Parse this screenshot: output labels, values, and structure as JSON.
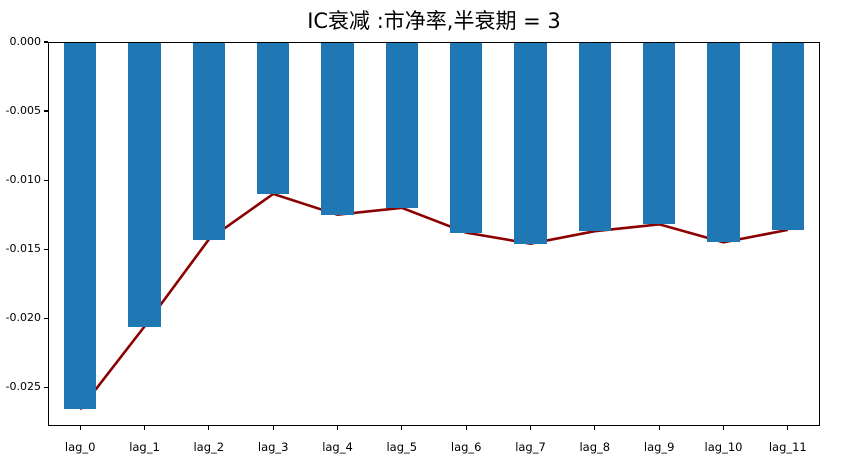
{
  "chart_data": {
    "type": "bar",
    "title": "IC衰减 :市净率,半衰期 = 3",
    "categories": [
      "lag_0",
      "lag_1",
      "lag_2",
      "lag_3",
      "lag_4",
      "lag_5",
      "lag_6",
      "lag_7",
      "lag_8",
      "lag_9",
      "lag_10",
      "lag_11"
    ],
    "series": [
      {
        "name": "ic-bars",
        "type": "bar",
        "color": "#1f77b4",
        "values": [
          -0.0266,
          -0.0206,
          -0.0143,
          -0.011,
          -0.0125,
          -0.012,
          -0.0138,
          -0.0146,
          -0.0137,
          -0.0132,
          -0.0145,
          -0.0136
        ]
      },
      {
        "name": "ic-line",
        "type": "line",
        "color": "#8b0000",
        "values": [
          -0.0266,
          -0.0206,
          -0.0143,
          -0.011,
          -0.0125,
          -0.012,
          -0.0138,
          -0.0146,
          -0.0137,
          -0.0132,
          -0.0145,
          -0.0136
        ]
      }
    ],
    "xlabel": "",
    "ylabel": "",
    "ylim": [
      -0.0278,
      0
    ],
    "yticks": [
      0,
      -0.005,
      -0.01,
      -0.015,
      -0.02,
      -0.025
    ],
    "ytick_labels": [
      "0.000",
      "-0.005",
      "-0.010",
      "-0.015",
      "-0.020",
      "-0.025"
    ],
    "grid": false,
    "legend_position": "none",
    "bar_width_fraction": 0.5
  }
}
